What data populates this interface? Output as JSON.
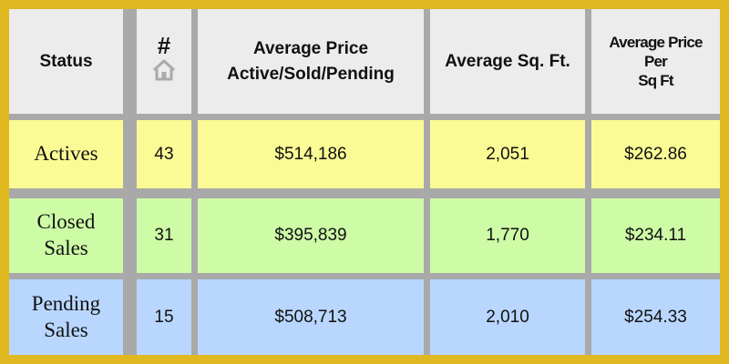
{
  "table": {
    "headers": {
      "status": "Status",
      "count_symbol": "#",
      "count_icon": "house-icon",
      "avg_price_line1": "Average Price",
      "avg_price_line2": "Active/Sold/Pending",
      "avg_sqft": "Average Sq. Ft.",
      "ppsf_line1": "Average Price",
      "ppsf_line2": "Per",
      "ppsf_line3": "Sq Ft"
    },
    "rows": [
      {
        "status_line1": "Actives",
        "status_line2": "",
        "count": "43",
        "avg_price": "$514,186",
        "avg_sqft": "2,051",
        "ppsf": "$262.86",
        "color": "#fbfb96"
      },
      {
        "status_line1": "Closed",
        "status_line2": "Sales",
        "count": "31",
        "avg_price": "$395,839",
        "avg_sqft": "1,770",
        "ppsf": "$234.11",
        "color": "#cdfba6"
      },
      {
        "status_line1": "Pending",
        "status_line2": "Sales",
        "count": "15",
        "avg_price": "$508,713",
        "avg_sqft": "2,010",
        "ppsf": "$254.33",
        "color": "#b9d6fe"
      }
    ]
  },
  "colors": {
    "frame_border": "#e0b81f",
    "grid": "#a9a9a9",
    "header_bg": "#ececec"
  }
}
